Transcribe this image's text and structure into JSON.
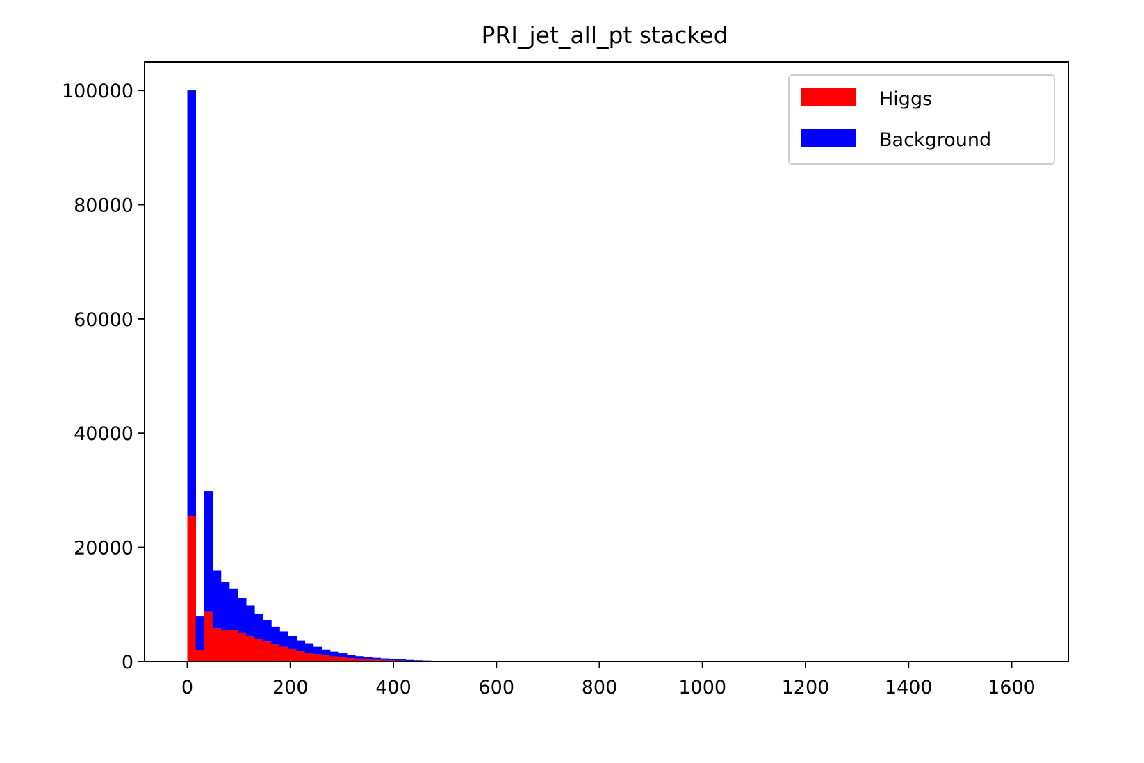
{
  "colors": {
    "higgs": "#ff0000",
    "background": "#0000ff"
  },
  "chart_data": {
    "type": "bar",
    "subtype": "stacked-histogram",
    "title": "PRI_jet_all_pt stacked",
    "xlabel": "",
    "ylabel": "",
    "xlim": [
      -83,
      1710
    ],
    "ylim": [
      0,
      105000
    ],
    "xticks": [
      0,
      200,
      400,
      600,
      800,
      1000,
      1200,
      1400,
      1600
    ],
    "yticks": [
      0,
      20000,
      40000,
      60000,
      80000,
      100000
    ],
    "xtick_labels": [
      "0",
      "200",
      "400",
      "600",
      "800",
      "1000",
      "1200",
      "1400",
      "1600"
    ],
    "ytick_labels": [
      "0",
      "20000",
      "40000",
      "60000",
      "80000",
      "100000"
    ],
    "grid": false,
    "legend": {
      "position": "top-right",
      "entries": [
        "Higgs",
        "Background"
      ]
    },
    "bin_start": 0,
    "bin_width": 16.3,
    "series": [
      {
        "name": "Higgs",
        "color": "#ff0000",
        "values": [
          25500,
          2000,
          8800,
          5800,
          5600,
          5500,
          5000,
          4500,
          4000,
          3500,
          3000,
          2600,
          2200,
          1800,
          1500,
          1300,
          1100,
          900,
          750,
          600,
          500,
          400,
          320,
          260,
          200,
          160,
          120,
          90,
          70,
          50,
          40,
          30,
          20
        ]
      },
      {
        "name": "Background",
        "color": "#0000ff",
        "values": [
          74500,
          5900,
          21000,
          10200,
          8300,
          7300,
          6100,
          5300,
          4400,
          3800,
          3100,
          2700,
          2300,
          1900,
          1600,
          1300,
          1000,
          850,
          700,
          600,
          450,
          400,
          330,
          280,
          250,
          200,
          160,
          120,
          90,
          60,
          40,
          30,
          20
        ]
      }
    ]
  }
}
